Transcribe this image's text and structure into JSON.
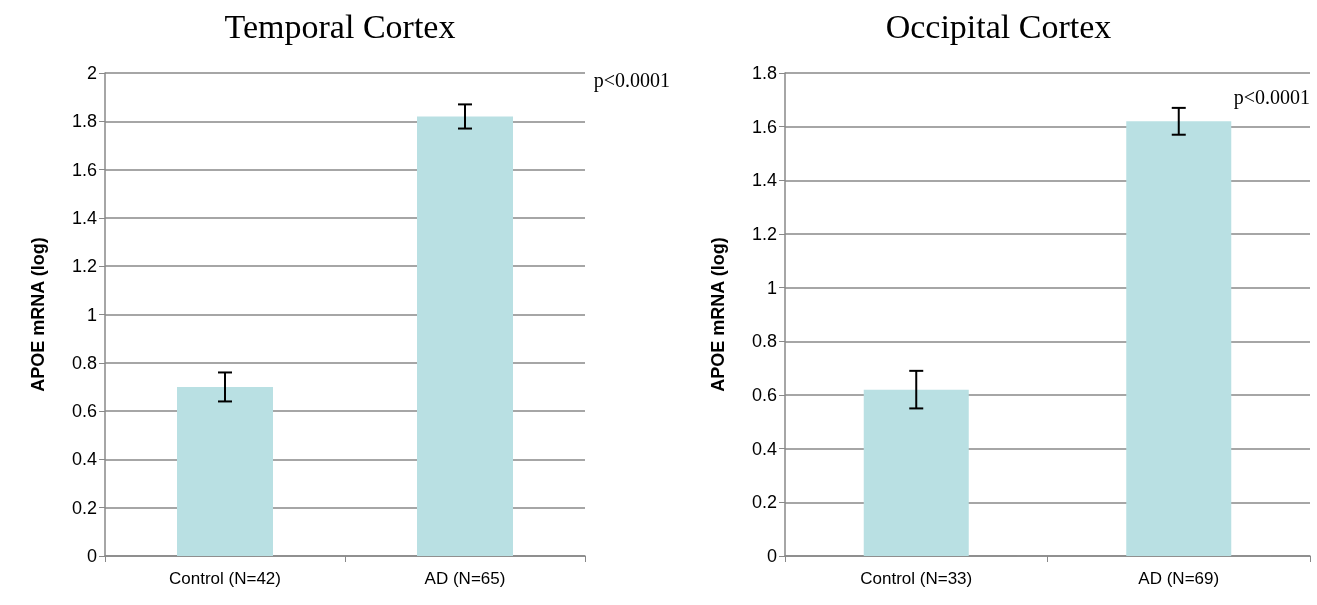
{
  "chart_data": [
    {
      "type": "bar",
      "title": "Temporal Cortex",
      "ylabel": "APOE mRNA (log)",
      "categories": [
        "Control (N=42)",
        "AD (N=65)"
      ],
      "values": [
        0.7,
        1.82
      ],
      "errors": [
        0.06,
        0.05
      ],
      "color": "#b9e0e3",
      "ylim": [
        0,
        2
      ],
      "yticks": [
        0,
        0.2,
        0.4,
        0.6,
        0.8,
        1,
        1.2,
        1.4,
        1.6,
        1.8,
        2
      ],
      "grid": "y",
      "annotations": [
        "p<0.0001"
      ]
    },
    {
      "type": "bar",
      "title": "Occipital Cortex",
      "ylabel": "APOE mRNA (log)",
      "categories": [
        "Control (N=33)",
        "AD (N=69)"
      ],
      "values": [
        0.62,
        1.62
      ],
      "errors": [
        0.07,
        0.05
      ],
      "color": "#b9e0e3",
      "ylim": [
        0,
        1.8
      ],
      "yticks": [
        0,
        0.2,
        0.4,
        0.6,
        0.8,
        1,
        1.2,
        1.4,
        1.6,
        1.8
      ],
      "grid": "y",
      "annotations": [
        "p<0.0001"
      ]
    }
  ]
}
